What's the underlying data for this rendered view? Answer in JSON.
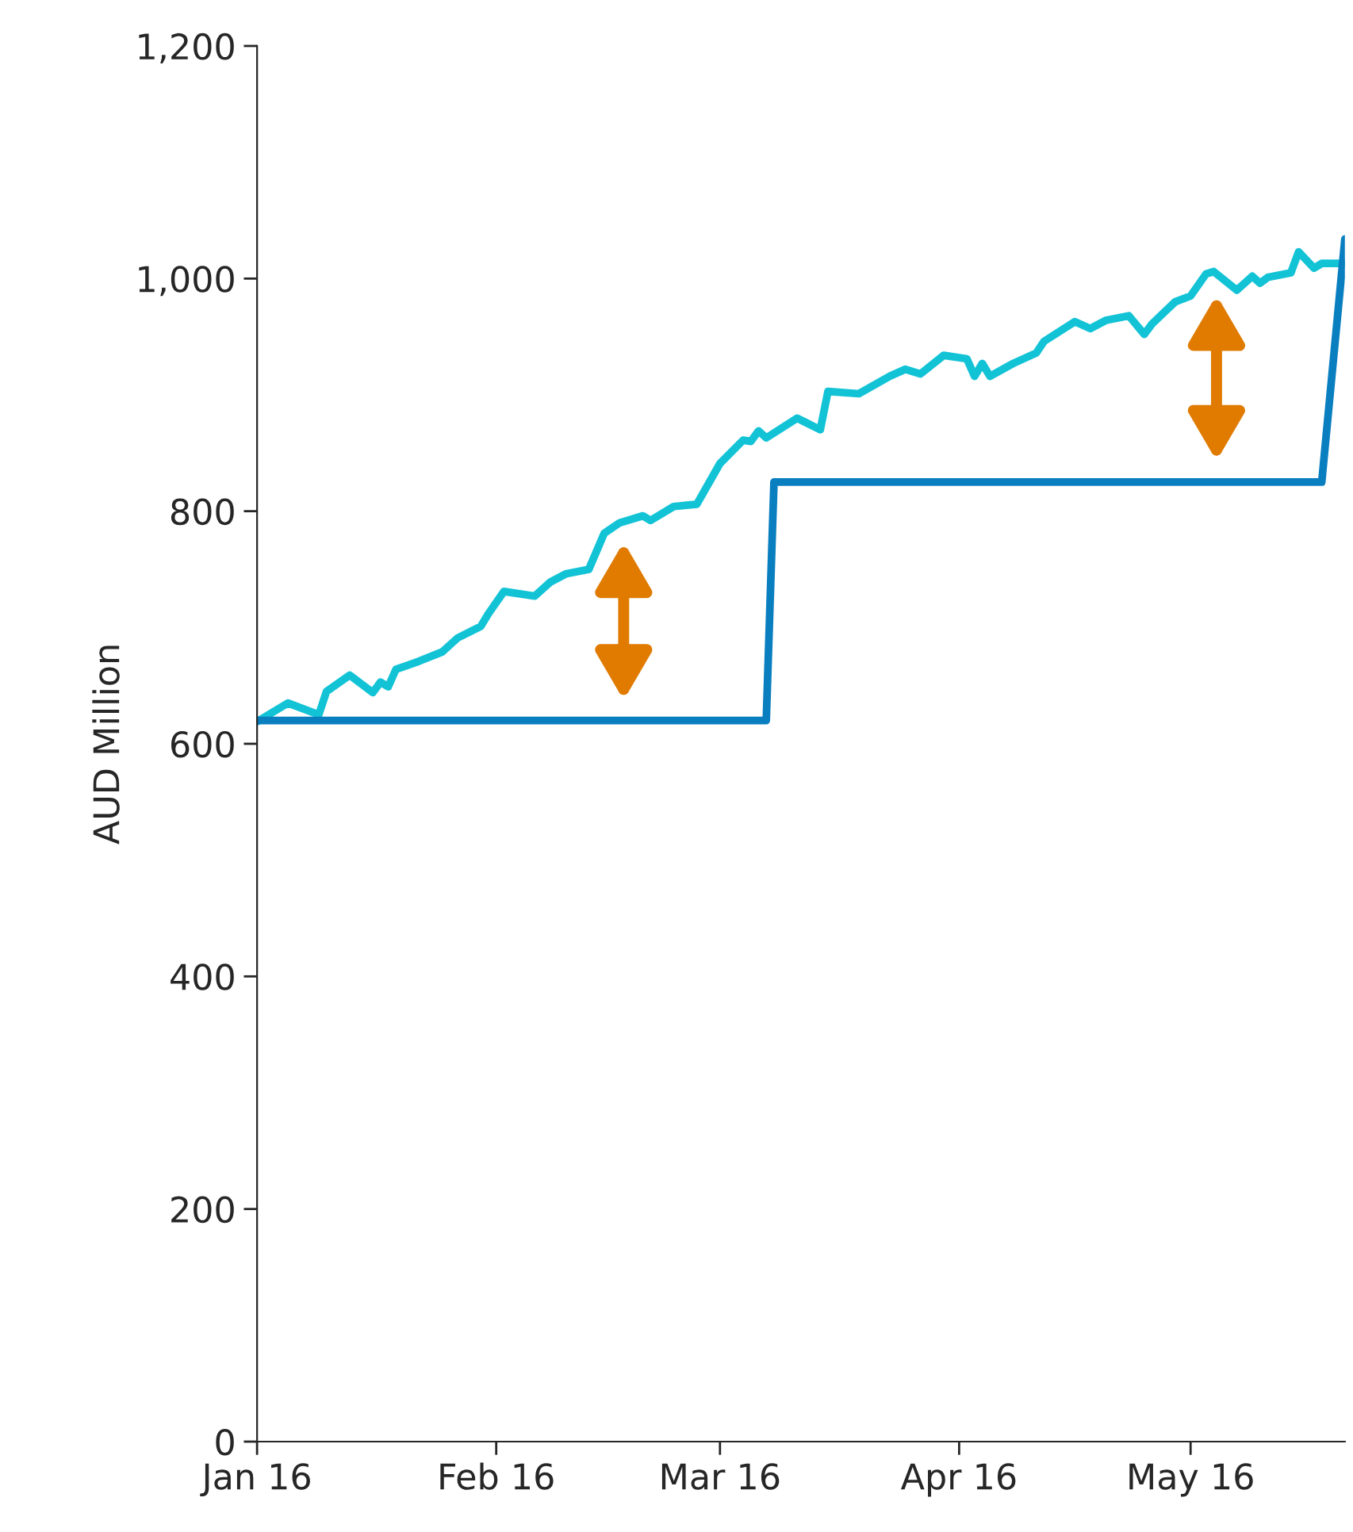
{
  "chart_data": {
    "type": "line",
    "ylabel": "AUD Million",
    "xlim": [
      "2016-01-01",
      "2016-05-21"
    ],
    "xticks": [
      {
        "value": "2016-01-01",
        "label": "Jan 16"
      },
      {
        "value": "2016-02-01",
        "label": "Feb 16"
      },
      {
        "value": "2016-03-01",
        "label": "Mar 16"
      },
      {
        "value": "2016-04-01",
        "label": "Apr 16"
      },
      {
        "value": "2016-05-01",
        "label": "May 16"
      }
    ],
    "ylim": [
      0,
      1200
    ],
    "yticks": [
      0,
      200,
      400,
      600,
      800,
      {
        "value": 1000,
        "label": "1,000"
      },
      {
        "value": 1200,
        "label": "1,200"
      }
    ],
    "grid": false,
    "legend": false,
    "marker": "none",
    "line_style": "solid",
    "series": [
      {
        "color": "#12c3d6",
        "x": [
          "2016-01-01",
          "2016-01-05",
          "2016-01-09",
          "2016-01-10",
          "2016-01-13",
          "2016-01-16",
          "2016-01-17",
          "2016-01-18",
          "2016-01-19",
          "2016-01-22",
          "2016-01-25",
          "2016-01-27",
          "2016-01-30",
          "2016-01-31",
          "2016-02-02",
          "2016-02-06",
          "2016-02-08",
          "2016-02-10",
          "2016-02-13",
          "2016-02-15",
          "2016-02-17",
          "2016-02-20",
          "2016-02-21",
          "2016-02-24",
          "2016-02-27",
          "2016-03-01",
          "2016-03-04",
          "2016-03-05",
          "2016-03-06",
          "2016-03-07",
          "2016-03-11",
          "2016-03-14",
          "2016-03-15",
          "2016-03-19",
          "2016-03-23",
          "2016-03-25",
          "2016-03-27",
          "2016-03-30",
          "2016-04-02",
          "2016-04-03",
          "2016-04-04",
          "2016-04-05",
          "2016-04-08",
          "2016-04-11",
          "2016-04-12",
          "2016-04-16",
          "2016-04-18",
          "2016-04-20",
          "2016-04-23",
          "2016-04-25",
          "2016-04-26",
          "2016-04-29",
          "2016-05-01",
          "2016-05-03",
          "2016-05-04",
          "2016-05-07",
          "2016-05-09",
          "2016-05-10",
          "2016-05-11",
          "2016-05-14",
          "2016-05-15",
          "2016-05-17",
          "2016-05-18",
          "2016-05-21"
        ],
        "values": [
          619,
          635,
          625,
          645,
          659,
          644,
          653,
          649,
          664,
          671,
          679,
          691,
          701,
          712,
          731,
          727,
          739,
          746,
          750,
          781,
          790,
          796,
          792,
          804,
          806,
          841,
          861,
          860,
          869,
          863,
          880,
          870,
          903,
          901,
          916,
          922,
          918,
          934,
          931,
          916,
          927,
          916,
          927,
          936,
          946,
          963,
          957,
          964,
          968,
          952,
          961,
          980,
          985,
          1004,
          1006,
          990,
          1002,
          996,
          1001,
          1005,
          1023,
          1009,
          1013,
          1013
        ]
      },
      {
        "color": "#0a7fc0",
        "x": [
          "2016-01-01",
          "2016-03-07",
          "2016-03-08",
          "2016-05-18",
          "2016-05-21"
        ],
        "values": [
          620,
          620,
          825,
          825,
          1034
        ]
      }
    ]
  }
}
